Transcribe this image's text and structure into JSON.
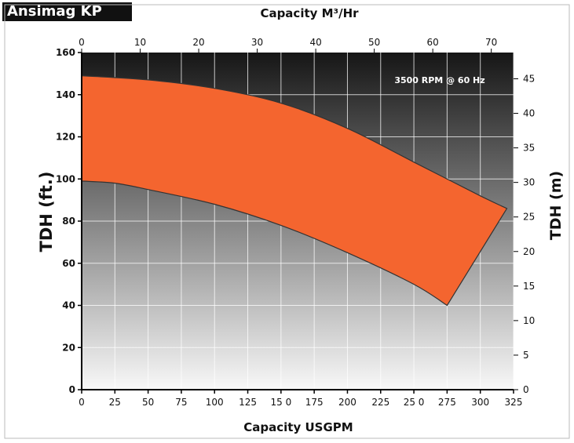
{
  "header": {
    "brand": "Ansimag KP"
  },
  "chart_data": {
    "type": "area",
    "title": "",
    "top_xlabel": "Capacity M³/Hr",
    "bottom_xlabel": "Capacity USGPM",
    "left_ylabel": "TDH (ft.)",
    "right_ylabel": "TDH (m)",
    "annotation": "3500 RPM @ 60 Hz",
    "xlim": [
      0,
      325
    ],
    "ylim": [
      0,
      160
    ],
    "x_top_lim_m3hr": [
      0,
      73.8
    ],
    "y_right_lim_m": [
      0,
      48.8
    ],
    "bottom_ticks": [
      "0",
      "25",
      "50",
      "75",
      "100",
      "125",
      "15 0",
      "175",
      "200",
      "225",
      "25 0",
      "275",
      "300",
      "325"
    ],
    "bottom_tick_values": [
      0,
      25,
      50,
      75,
      100,
      125,
      150,
      175,
      200,
      225,
      250,
      275,
      300,
      325
    ],
    "top_ticks": [
      "0",
      "10",
      "20",
      "30",
      "40",
      "50",
      "60",
      "70"
    ],
    "top_tick_values": [
      0,
      10,
      20,
      30,
      40,
      50,
      60,
      70
    ],
    "left_ticks": [
      "0",
      "20",
      "40",
      "60",
      "80",
      "100",
      "120",
      "140",
      "160"
    ],
    "left_tick_values": [
      0,
      20,
      40,
      60,
      80,
      100,
      120,
      140,
      160
    ],
    "right_ticks": [
      "0",
      "5",
      "10",
      "15",
      "20",
      "25",
      "30",
      "35",
      "40",
      "45"
    ],
    "right_tick_values": [
      0,
      5,
      10,
      15,
      20,
      25,
      30,
      35,
      40,
      45
    ],
    "grid": true,
    "series": [
      {
        "role": "upper-boundary",
        "x": [
          0,
          50,
          100,
          150,
          200,
          250,
          300,
          320
        ],
        "values": [
          149,
          147,
          143,
          136,
          124,
          108,
          92,
          86
        ]
      },
      {
        "role": "lower-boundary",
        "x": [
          0,
          25,
          50,
          100,
          150,
          200,
          250,
          275
        ],
        "values": [
          99,
          98,
          95,
          88,
          78,
          65,
          50,
          40
        ]
      }
    ],
    "colors": {
      "band": "#f4652f",
      "band_edge": "#333333",
      "background_top": "#1a1a1a",
      "background_bottom": "#f7f7f7",
      "grid": "#ffffff"
    }
  }
}
